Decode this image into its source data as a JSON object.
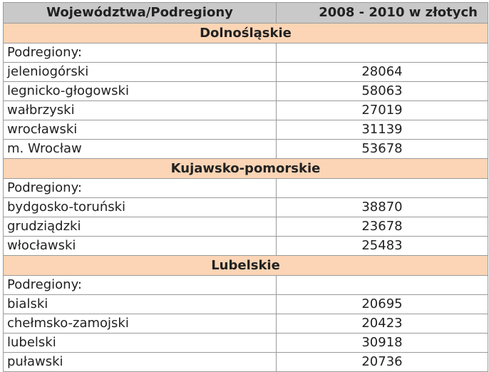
{
  "table": {
    "headers": [
      "Województwa/Podregiony",
      "2008 - 2010  w złotych"
    ],
    "regions": [
      {
        "name": "Dolnośląskie",
        "subheader": "Podregiony:",
        "rows": [
          {
            "name": "jeleniogórski",
            "value": "28064"
          },
          {
            "name": "legnicko-głogowski",
            "value": "58063"
          },
          {
            "name": "wałbrzyski",
            "value": "27019"
          },
          {
            "name": "wrocławski",
            "value": "31139"
          },
          {
            "name": "m. Wrocław",
            "value": "53678"
          }
        ]
      },
      {
        "name": "Kujawsko-pomorskie",
        "subheader": "Podregiony:",
        "rows": [
          {
            "name": "bydgosko-toruński",
            "value": "38870"
          },
          {
            "name": "grudziądzki",
            "value": "23678"
          },
          {
            "name": "włocławski",
            "value": "25483"
          }
        ]
      },
      {
        "name": "Lubelskie",
        "subheader": "Podregiony:",
        "rows": [
          {
            "name": "bialski",
            "value": "20695"
          },
          {
            "name": "chełmsko-zamojski",
            "value": "20423"
          },
          {
            "name": "lubelski",
            "value": "30918"
          },
          {
            "name": "puławski",
            "value": "20736"
          }
        ]
      }
    ]
  },
  "colors": {
    "header_bg": "#c9c9c9",
    "region_bg": "#fbd5b5",
    "border": "#9a9a9a"
  }
}
